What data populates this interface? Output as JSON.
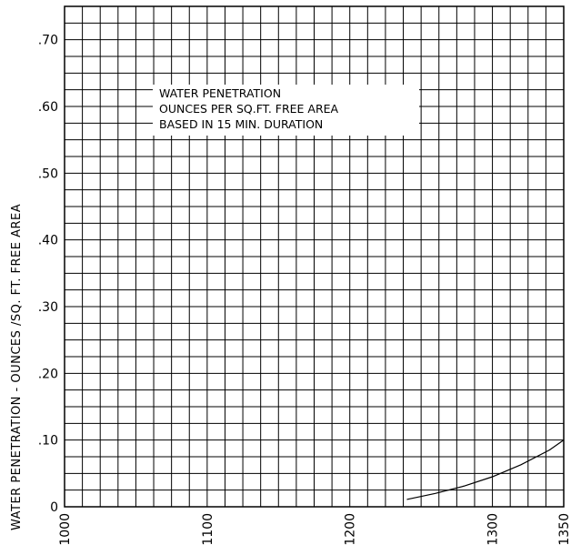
{
  "chart_data": {
    "type": "line",
    "ylabel": "WATER PENETRATION - OUNCES /SQ. FT. FREE AREA",
    "xlim": [
      1000,
      1350
    ],
    "ylim": [
      0,
      0.75
    ],
    "x_ticks": [
      {
        "value": 1000,
        "label": "1000"
      },
      {
        "value": 1100,
        "label": "1100"
      },
      {
        "value": 1200,
        "label": "1200"
      },
      {
        "value": 1300,
        "label": "1300"
      },
      {
        "value": 1350,
        "label": "1350"
      }
    ],
    "y_ticks": [
      {
        "value": 0,
        "label": "0"
      },
      {
        "value": 0.1,
        "label": ".10"
      },
      {
        "value": 0.2,
        "label": ".20"
      },
      {
        "value": 0.3,
        "label": ".30"
      },
      {
        "value": 0.4,
        "label": ".40"
      },
      {
        "value": 0.5,
        "label": ".50"
      },
      {
        "value": 0.6,
        "label": ".60"
      },
      {
        "value": 0.7,
        "label": ".70"
      }
    ],
    "x_grid_step": 12.5,
    "y_grid_step": 0.025,
    "grid": true,
    "annotation": {
      "lines": [
        "WATER PENETRATION",
        "OUNCES PER SQ.FT. FREE AREA",
        "BASED IN 15 MIN. DURATION"
      ],
      "position": "upper-middle"
    },
    "series": [
      {
        "x": [
          1240,
          1260,
          1280,
          1300,
          1320,
          1340,
          1350
        ],
        "y": [
          0.011,
          0.02,
          0.031,
          0.045,
          0.063,
          0.085,
          0.1
        ]
      }
    ]
  }
}
